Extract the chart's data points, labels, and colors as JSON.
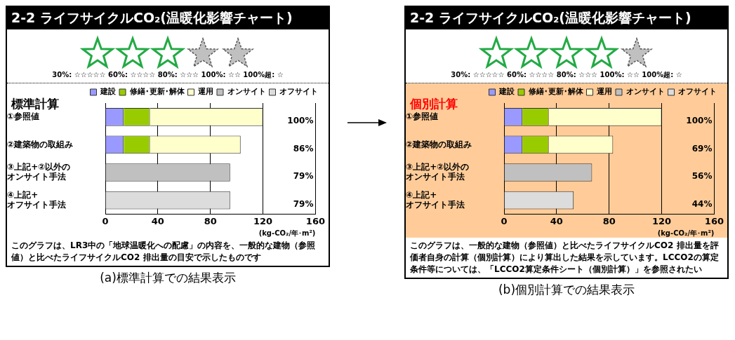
{
  "chart_data": [
    {
      "type": "bar",
      "orientation": "horizontal",
      "stacked": true,
      "title": "2-2 ライフサイクルCO₂(温暖化影響チャート)",
      "subtitle": "標準計算",
      "categories": [
        "①参照値",
        "②建築物の取組み",
        "③上記+②以外のオンサイト手法",
        "④上記+オフサイト手法"
      ],
      "series": [
        {
          "name": "建設",
          "color": "#9999ff",
          "values": [
            14,
            14,
            null,
            null
          ]
        },
        {
          "name": "修繕･更新･解体",
          "color": "#99cc00",
          "values": [
            20,
            20,
            null,
            null
          ]
        },
        {
          "name": "運用",
          "color": "#ffffcc",
          "values": [
            86,
            69,
            null,
            null
          ]
        },
        {
          "name": "オンサイト",
          "color": "#c0c0c0",
          "values": [
            null,
            null,
            95,
            null
          ]
        },
        {
          "name": "オフサイト",
          "color": "#dcdcdc",
          "values": [
            null,
            null,
            null,
            95
          ]
        }
      ],
      "xlim": [
        0,
        160
      ],
      "xticks": [
        0,
        40,
        80,
        120,
        160
      ],
      "xlabel": "(kg-CO₂/年･m²)",
      "grid": "x",
      "legend": "top right",
      "annotations": [
        "30%: ☆☆☆☆☆  60%: ☆☆☆☆  80%: ☆☆☆  100%: ☆☆  100%超: ☆",
        "このグラフは、LR3中の「地球温暖化への配慮」の内容を、一般的な建物（参照値）と比べたライフサイクルCO2 排出量の目安で示したものです",
        "(a)標準計算での結果表示",
        "100%",
        "86%",
        "79%",
        "79%"
      ]
    },
    {
      "type": "bar",
      "orientation": "horizontal",
      "stacked": true,
      "title": "2-2 ライフサイクルCO₂(温暖化影響チャート)",
      "subtitle": "個別計算",
      "categories": [
        "①参照値",
        "②建築物の取組み",
        "③上記+②以外のオンサイト手法",
        "④上記+オフサイト手法"
      ],
      "series": [
        {
          "name": "建設",
          "color": "#9999ff",
          "values": [
            14,
            14,
            null,
            null
          ]
        },
        {
          "name": "修繕･更新･解体",
          "color": "#99cc00",
          "values": [
            20,
            20,
            null,
            null
          ]
        },
        {
          "name": "運用",
          "color": "#ffffcc",
          "values": [
            86,
            49,
            null,
            null
          ]
        },
        {
          "name": "オンサイト",
          "color": "#c0c0c0",
          "values": [
            null,
            null,
            67,
            null
          ]
        },
        {
          "name": "オフサイト",
          "color": "#dcdcdc",
          "values": [
            null,
            null,
            null,
            53
          ]
        }
      ],
      "xlim": [
        0,
        160
      ],
      "xticks": [
        0,
        40,
        80,
        120,
        160
      ],
      "xlabel": "(kg-CO₂/年･m²)",
      "grid": "x",
      "legend": "top right",
      "annotations": [
        "30%: ☆☆☆☆☆  60%: ☆☆☆☆  80%: ☆☆☆  100%: ☆☆  100%超: ☆",
        "このグラフは、一般的な建物（参照値）と比べたライフサイクルCO2 排出量を評価者自身の計算（個別計算）により算出した結果を示しています。LCCO2の算定条件等については、「LCCO2算定条件シート（個別計算）」を参照されたい",
        "(b)個別計算での結果表示",
        "100%",
        "69%",
        "56%",
        "44%"
      ]
    }
  ]
}
